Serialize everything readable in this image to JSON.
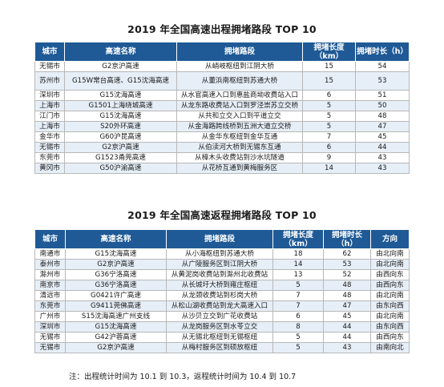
{
  "outbound": {
    "title": "2019 年全国高速出程拥堵路段 TOP 10",
    "headers": [
      "城市",
      "高速名称",
      "拥堵路段",
      "拥堵长度（km）",
      "拥堵时长（h）"
    ],
    "rows": [
      [
        "无锡市",
        "G2京沪高速",
        "从峭岐枢纽到江阴大桥",
        "15",
        "54"
      ],
      [
        "苏州市",
        "G15W常台高速、G15沈海高速",
        "从董浜南枢纽到苏通大桥",
        "15",
        "53"
      ],
      [
        "深圳市",
        "G15沈海高速",
        "从水官高速入口到惠盐商坳收费站入口",
        "6",
        "51"
      ],
      [
        "上海市",
        "G1501上海绕城高速",
        "从龙东路收费站入口到罗泾崇苏立交桥",
        "5",
        "50"
      ],
      [
        "江门市",
        "G15沈海高速",
        "从共和立交入口到平道立交",
        "5",
        "48"
      ],
      [
        "上海市",
        "S20外环高速",
        "从金海路跨线桥到五洲大道立交桥",
        "5",
        "47"
      ],
      [
        "金华市",
        "G60沪昆高速",
        "从金华东枢纽到金华互通",
        "7",
        "45"
      ],
      [
        "无锡市",
        "G2京沪高速",
        "从伯渎河大桥到无锡东互通",
        "6",
        "44"
      ],
      [
        "东莞市",
        "G1523甬莞高速",
        "从樟木头收费站到沙水坑隧道",
        "9",
        "43"
      ],
      [
        "黄冈市",
        "G50沪渝高速",
        "从花桥互通到黄梅服务区",
        "14",
        "43"
      ]
    ]
  },
  "return": {
    "title": "2019 年全国高速返程拥堵路段 TOP 10",
    "headers": [
      "城市",
      "高速名称",
      "拥堵路段",
      "拥堵长度（km）",
      "拥堵时长（h）",
      "方向"
    ],
    "rows": [
      [
        "南通市",
        "G15沈海高速",
        "从小海枢纽到苏通大桥",
        "18",
        "62",
        "由北向南"
      ],
      [
        "泰州市",
        "G2京沪高速",
        "从广陵服务区到江阴大桥",
        "14",
        "53",
        "由北向南"
      ],
      [
        "滁州市",
        "G36宁洛高速",
        "从黄泥岗收费站到滁州北收费站",
        "13",
        "52",
        "由西向东"
      ],
      [
        "南京市",
        "G36宁洛高速",
        "从长城圩大桥到雍庄枢纽",
        "5",
        "48",
        "由西向东"
      ],
      [
        "清远市",
        "G0421许广高速",
        "从龙颈收费站到杉岗大桥",
        "7",
        "48",
        "由北向南"
      ],
      [
        "东莞市",
        "G9411莞佛高速",
        "从松山湖收费站到龙大高速入口",
        "7",
        "47",
        "由东向西"
      ],
      [
        "广州市",
        "S15沈海高速广州支线",
        "从沙贝立交到广花收费站",
        "6",
        "45",
        "由北向南"
      ],
      [
        "深圳市",
        "G15沈海高速",
        "从龙岗服务区到水苓立交",
        "8",
        "44",
        "由东向西"
      ],
      [
        "无锡市",
        "G42沪蓉高速",
        "从无锡北枢纽到无锡枢纽",
        "5",
        "44",
        "由西向东"
      ],
      [
        "无锡市",
        "G2京沪高速",
        "从梅村服务区到硕放枢纽",
        "5",
        "43",
        "由南向北"
      ]
    ]
  },
  "note": "注：出程统计时间为 10.1 到 10.3，返程统计时间为 10.4 到 10.7"
}
